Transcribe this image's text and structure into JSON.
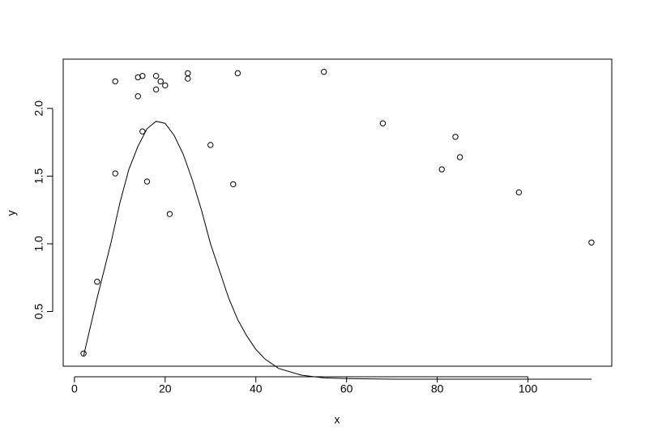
{
  "chart_data": {
    "type": "scatter",
    "xlabel": "x",
    "ylabel": "y",
    "xlim": [
      -2.48,
      118.48
    ],
    "ylim": [
      0.096,
      2.364
    ],
    "xticks": [
      0,
      20,
      40,
      60,
      80,
      100
    ],
    "yticks": [
      {
        "value": 0.5,
        "label": "0.5"
      },
      {
        "value": 1.0,
        "label": "1.0"
      },
      {
        "value": 1.5,
        "label": "1.5"
      },
      {
        "value": 2.0,
        "label": "2.0"
      }
    ],
    "series": [
      {
        "type": "scatter",
        "color": "#000000",
        "x": [
          2,
          5,
          9,
          9,
          14,
          14,
          15,
          15,
          16,
          18,
          18,
          19,
          20,
          21,
          25,
          25,
          30,
          35,
          36,
          55,
          68,
          81,
          84,
          85,
          98,
          114
        ],
        "values": [
          0.19,
          0.72,
          1.52,
          2.2,
          2.09,
          2.23,
          2.24,
          1.83,
          1.46,
          2.24,
          2.14,
          2.2,
          2.17,
          1.22,
          2.26,
          2.22,
          1.73,
          1.44,
          2.26,
          2.27,
          1.89,
          1.55,
          1.79,
          1.64,
          1.38,
          1.01
        ]
      },
      {
        "type": "line",
        "color": "#000000",
        "x": [
          2,
          5,
          8,
          10,
          12,
          14,
          16,
          18,
          20,
          22,
          24,
          26,
          28,
          30,
          32,
          34,
          36,
          38,
          40,
          42,
          45,
          50,
          55,
          60,
          70,
          114
        ],
        "values": [
          0.17,
          0.6,
          1.0,
          1.3,
          1.55,
          1.72,
          1.85,
          1.905,
          1.89,
          1.8,
          1.66,
          1.47,
          1.25,
          1.0,
          0.8,
          0.6,
          0.44,
          0.32,
          0.22,
          0.15,
          0.08,
          0.03,
          0.01,
          0.005,
          0,
          0
        ]
      }
    ]
  }
}
